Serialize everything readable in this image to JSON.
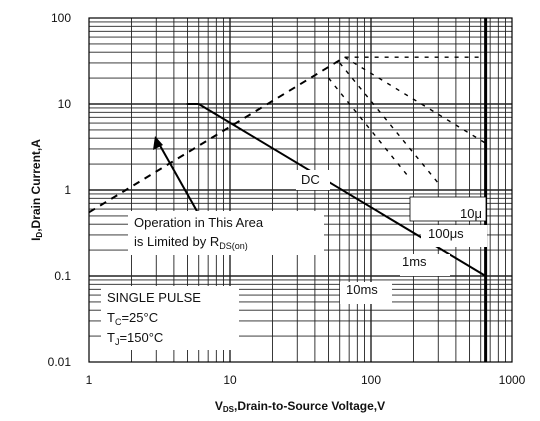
{
  "chart_data": {
    "type": "line",
    "xscale": "log",
    "yscale": "log",
    "xlim": [
      1,
      1000
    ],
    "ylim": [
      0.01,
      100
    ],
    "grid": true,
    "x_ticks": [
      "1",
      "10",
      "100",
      "1000"
    ],
    "y_ticks": [
      "100",
      "10",
      "1",
      "0.1",
      "0.01"
    ],
    "xlabel": {
      "main": "V",
      "sub": "DS",
      "rest": ",Drain-to-Source Voltage,V"
    },
    "ylabel": {
      "main": "I",
      "sub": "D",
      "rest": ",Drain Current,A"
    },
    "rds_limit": {
      "x": [
        1,
        65
      ],
      "y": [
        0.55,
        35
      ]
    },
    "series": [
      {
        "name": "10μ",
        "style": "dashed",
        "x": [
          65,
          650
        ],
        "y": [
          35,
          35
        ]
      },
      {
        "name": "100μs",
        "style": "dashed",
        "x": [
          65,
          650
        ],
        "y": [
          35,
          3.5
        ]
      },
      {
        "name": "1ms",
        "style": "dashed",
        "x": [
          60,
          300
        ],
        "y": [
          30,
          1.2
        ]
      },
      {
        "name": "10ms",
        "style": "dashed",
        "x": [
          50,
          180
        ],
        "y": [
          20,
          1.5
        ]
      },
      {
        "name": "DC",
        "style": "solid",
        "x": [
          6,
          650
        ],
        "y": [
          10,
          0.1
        ]
      }
    ],
    "vertical_limit": {
      "x": 650,
      "y": [
        0.01,
        100
      ]
    },
    "annotations": {
      "rds_line1": "Operation in This Area",
      "rds_line2_prefix": "is Limited by R",
      "rds_line2_sub": "DS(on)",
      "pulse_title": "SINGLE PULSE",
      "tc_main": "T",
      "tc_sub": "C",
      "tc_rest": "=25°C",
      "tj_main": "T",
      "tj_sub": "J",
      "tj_rest": "=150°C"
    },
    "colors": {
      "grid": "#222222",
      "line": "#000000",
      "background": "#ffffff"
    }
  }
}
